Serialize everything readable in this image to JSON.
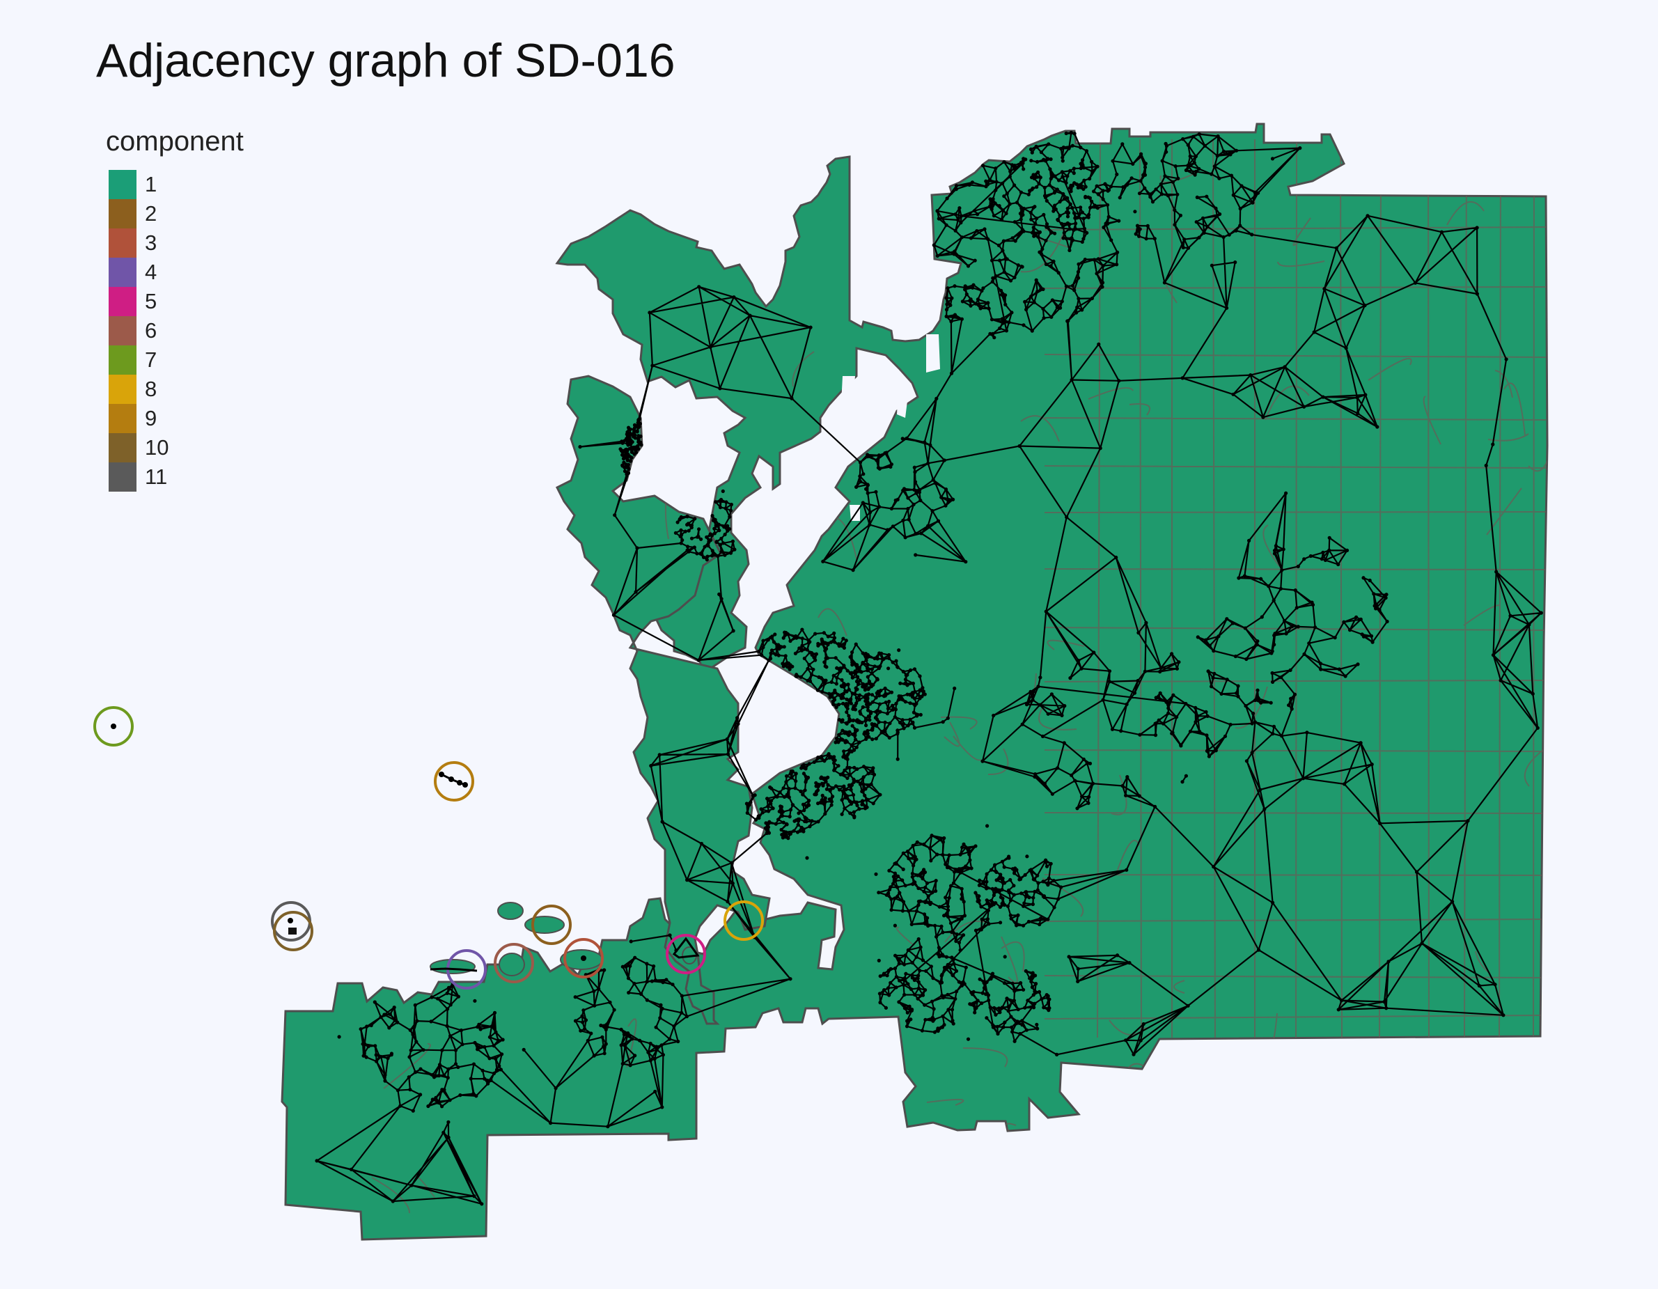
{
  "title": "Adjacency graph of SD-016",
  "legend": {
    "title": "component",
    "items": [
      {
        "label": "1",
        "color": "#1b9e77"
      },
      {
        "label": "2",
        "color": "#8c5f1e"
      },
      {
        "label": "3",
        "color": "#b0523a"
      },
      {
        "label": "4",
        "color": "#7055a8"
      },
      {
        "label": "5",
        "color": "#cf1e84"
      },
      {
        "label": "6",
        "color": "#9c5a4a"
      },
      {
        "label": "7",
        "color": "#6d9a1e"
      },
      {
        "label": "8",
        "color": "#d9a40a"
      },
      {
        "label": "9",
        "color": "#b47d10"
      },
      {
        "label": "10",
        "color": "#7e6129"
      },
      {
        "label": "11",
        "color": "#5a5a5a"
      }
    ]
  },
  "colors": {
    "background": "#f5f7fe",
    "region_fill": "#1f9a6d",
    "region_border": "#4e4e4e",
    "precinct_lines": "#6b5a55",
    "graph_edges": "#000000"
  },
  "map_layers": [
    "district-region",
    "precinct-boundaries",
    "adjacency-graph",
    "component-circles"
  ]
}
